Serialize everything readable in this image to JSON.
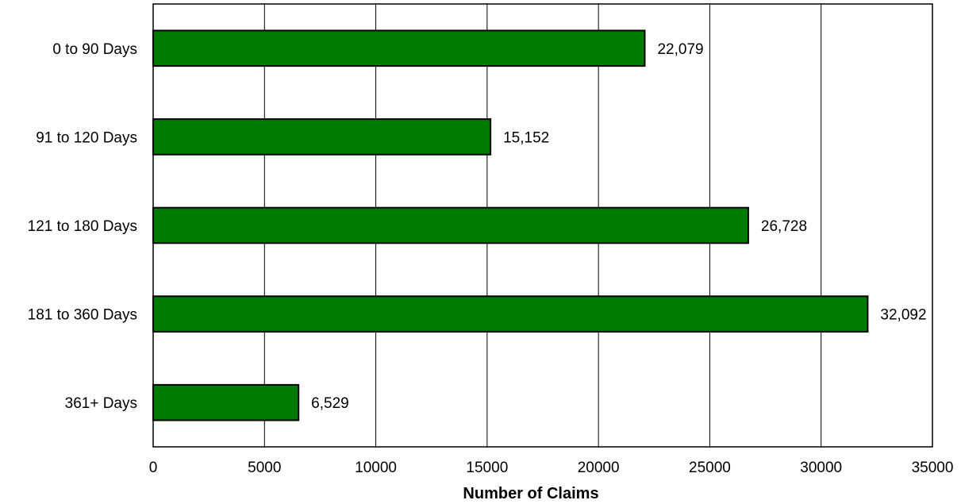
{
  "chart_data": {
    "type": "bar",
    "orientation": "horizontal",
    "categories": [
      "0 to 90 Days",
      "91 to 120 Days",
      "121 to 180 Days",
      "181 to 360 Days",
      "361+ Days"
    ],
    "values": [
      22079,
      15152,
      26728,
      32092,
      6529
    ],
    "data_labels": [
      "22,079",
      "15,152",
      "26,728",
      "32,092",
      "6,529"
    ],
    "xlabel": "Number of Claims",
    "ylabel": "",
    "title": "",
    "xlim": [
      0,
      35000
    ],
    "xticks": [
      "0",
      "5000",
      "10000",
      "15000",
      "20000",
      "25000",
      "30000",
      "35000"
    ],
    "grid": "vertical",
    "legend": "none",
    "bar_color": "#007a00",
    "bar_edge_color": "#000000"
  }
}
